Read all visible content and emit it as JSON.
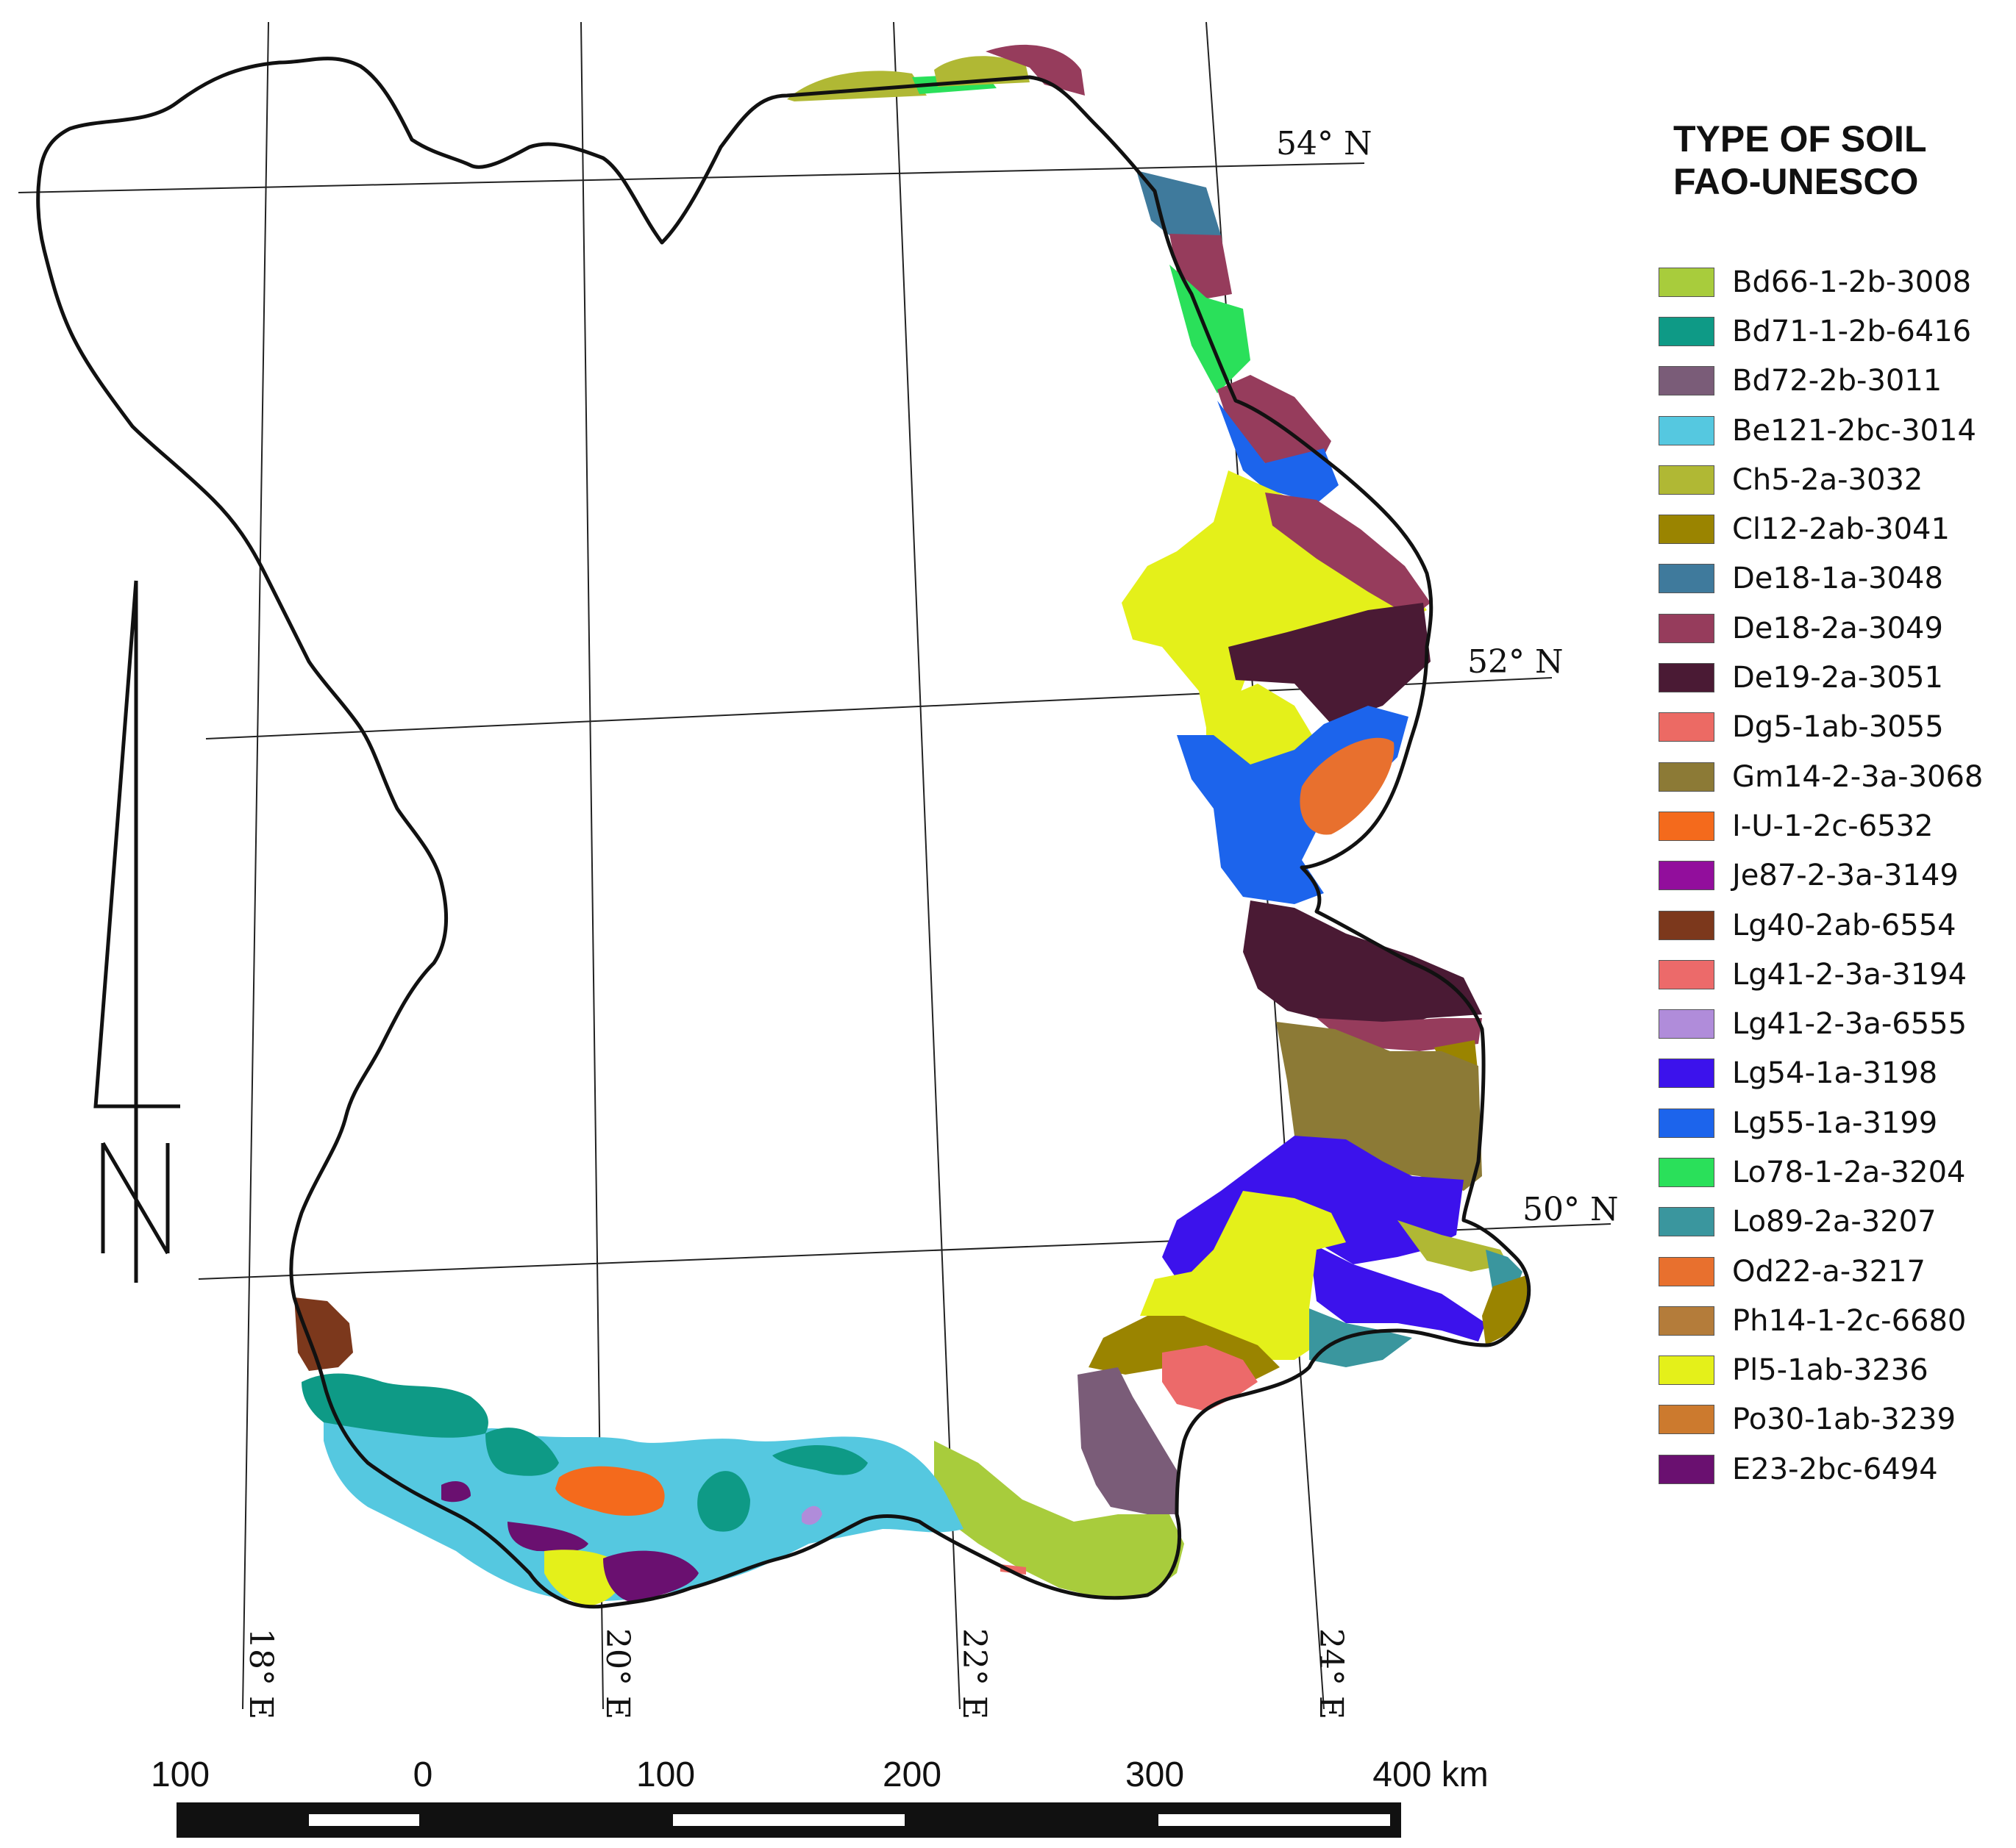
{
  "legend": {
    "title_line1": "TYPE OF SOIL",
    "title_line2": "FAO-UNESCO",
    "items": [
      {
        "label": "Bd66-1-2b-3008",
        "color": "#a8cc3c"
      },
      {
        "label": "Bd71-1-2b-6416",
        "color": "#0e9a86"
      },
      {
        "label": "Bd72-2b-3011",
        "color": "#7a5c78"
      },
      {
        "label": "Be121-2bc-3014",
        "color": "#55c8e0"
      },
      {
        "label": "Ch5-2a-3032",
        "color": "#b0b834"
      },
      {
        "label": "Cl12-2ab-3041",
        "color": "#9a8400"
      },
      {
        "label": "De18-1a-3048",
        "color": "#3f7a9c"
      },
      {
        "label": "De18-2a-3049",
        "color": "#963c5c"
      },
      {
        "label": "De19-2a-3051",
        "color": "#4a1a34"
      },
      {
        "label": "Dg5-1ab-3055",
        "color": "#ec6a64"
      },
      {
        "label": "Gm14-2-3a-3068",
        "color": "#8c7a36"
      },
      {
        "label": "I-U-1-2c-6532",
        "color": "#f46a1c"
      },
      {
        "label": "Je87-2-3a-3149",
        "color": "#920e9c"
      },
      {
        "label": "Lg40-2ab-6554",
        "color": "#7c381c"
      },
      {
        "label": "Lg41-2-3a-3194",
        "color": "#ec6a6a"
      },
      {
        "label": "Lg41-2-3a-6555",
        "color": "#b08cda"
      },
      {
        "label": "Lg54-1a-3198",
        "color": "#3c12ec"
      },
      {
        "label": "Lg55-1a-3199",
        "color": "#1c64ec"
      },
      {
        "label": "Lo78-1-2a-3204",
        "color": "#2ae05a"
      },
      {
        "label": "Lo89-2a-3207",
        "color": "#3a969e"
      },
      {
        "label": "Od22-a-3217",
        "color": "#e8702e"
      },
      {
        "label": "Ph14-1-2c-6680",
        "color": "#b47c3a"
      },
      {
        "label": "Pl5-1ab-3236",
        "color": "#e4f01a"
      },
      {
        "label": "Po30-1ab-3239",
        "color": "#cc7a2e"
      },
      {
        "label": "E23-2bc-6494",
        "color": "#6a1070"
      }
    ]
  },
  "graticule": {
    "latitudes": [
      "54° N",
      "52° N",
      "50° N"
    ],
    "longitudes": [
      "18° E",
      "20° E",
      "22° E",
      "24° E"
    ]
  },
  "scale_bar": {
    "labels": [
      "100",
      "0",
      "100",
      "200",
      "300",
      "400 km"
    ]
  }
}
